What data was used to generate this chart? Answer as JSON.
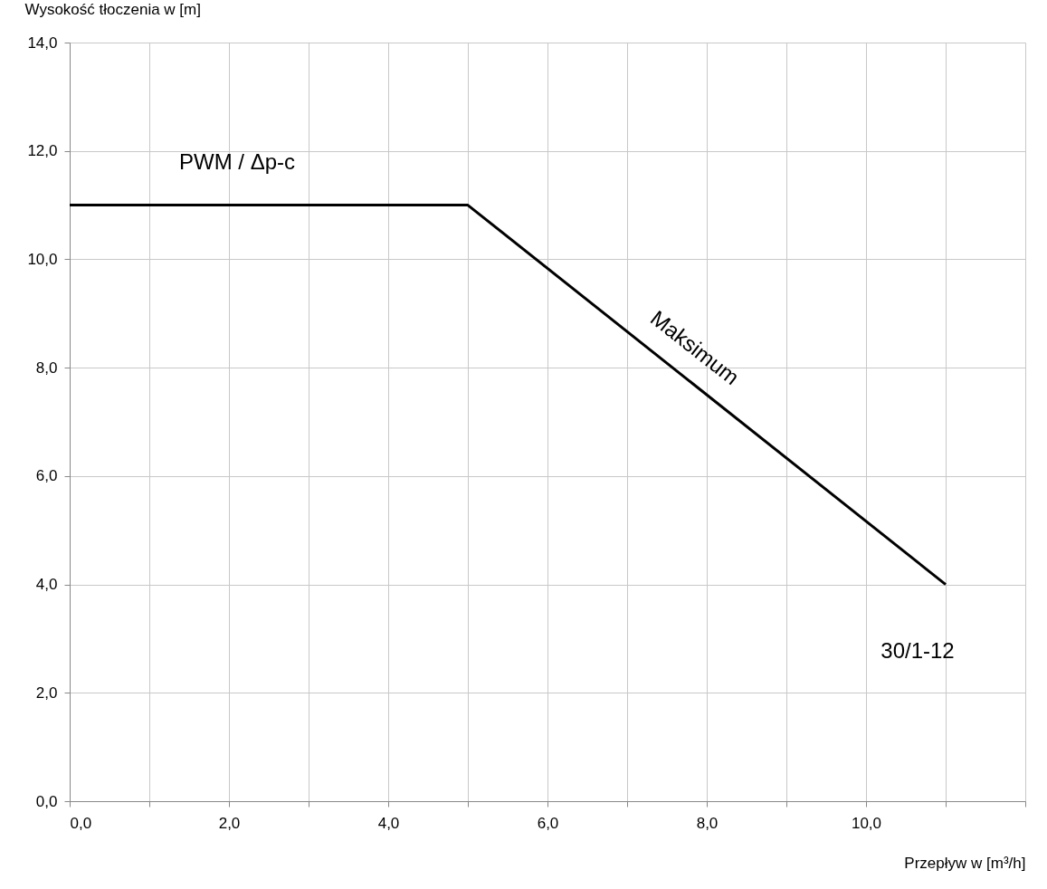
{
  "chart_data": {
    "type": "line",
    "xlabel": "Przepływ w [m³/h]",
    "ylabel": "Wysokość tłoczenia w [m]",
    "x": [
      0,
      5,
      11
    ],
    "series": [
      {
        "color": "#000000",
        "values": [
          11,
          11,
          4
        ]
      }
    ],
    "xlim": [
      0,
      12
    ],
    "ylim": [
      0,
      14
    ],
    "xticks": [
      {
        "value": 0,
        "label": "0,0"
      },
      {
        "value": 1,
        "label": null
      },
      {
        "value": 2,
        "label": "2,0"
      },
      {
        "value": 3,
        "label": null
      },
      {
        "value": 4,
        "label": "4,0"
      },
      {
        "value": 5,
        "label": null
      },
      {
        "value": 6,
        "label": "6,0"
      },
      {
        "value": 7,
        "label": null
      },
      {
        "value": 8,
        "label": "8,0"
      },
      {
        "value": 9,
        "label": null
      },
      {
        "value": 10,
        "label": "10,0"
      },
      {
        "value": 11,
        "label": null
      },
      {
        "value": 12,
        "label": null
      }
    ],
    "yticks": [
      {
        "value": 0,
        "label": "0,0"
      },
      {
        "value": 2,
        "label": "2,0"
      },
      {
        "value": 4,
        "label": "4,0"
      },
      {
        "value": 6,
        "label": "6,0"
      },
      {
        "value": 8,
        "label": "8,0"
      },
      {
        "value": 10,
        "label": "10,0"
      },
      {
        "value": 12,
        "label": "12,0"
      },
      {
        "value": 14,
        "label": "14,0"
      }
    ],
    "annotations": [
      "PWM / Δp-c",
      "Maksimum",
      "30/1-12"
    ],
    "grid": true,
    "marker": "none",
    "line_style": "solid"
  }
}
